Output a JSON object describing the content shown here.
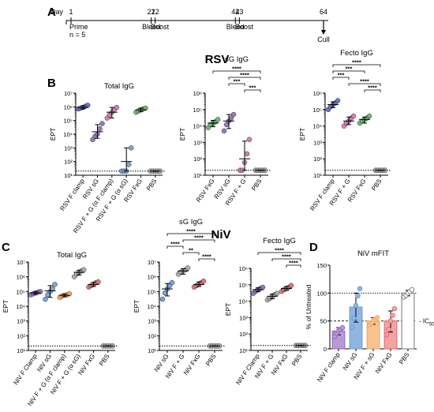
{
  "panels": {
    "A": "A",
    "B": "B",
    "C": "C",
    "D": "D"
  },
  "section_titles": {
    "rsv": "RSV",
    "niv": "NiV"
  },
  "timeline": {
    "day_label": "Day",
    "days": [
      {
        "day": 1,
        "label": "1",
        "event": "Prime",
        "sub": "n = 5"
      },
      {
        "day": 21,
        "label": "21",
        "event": "Bleed",
        "sub": ""
      },
      {
        "day": 22,
        "label": "22",
        "event": "Boost",
        "sub": ""
      },
      {
        "day": 42,
        "label": "42",
        "event": "Bleed",
        "sub": ""
      },
      {
        "day": 43,
        "label": "43",
        "event": "Boost",
        "sub": ""
      },
      {
        "day": 64,
        "label": "64",
        "event": "Cull",
        "sub": ""
      }
    ]
  },
  "chart_data": [
    {
      "id": "B1",
      "type": "scatter",
      "title": "Total IgG",
      "ylabel": "EPT",
      "log": true,
      "ylim": [
        10,
        10000000
      ],
      "limit_line": 20,
      "categories": [
        "RSV F clamp",
        "RSV sG",
        "RSV F + G (α F clamp)",
        "RSV F + G (α sG)",
        "RSV FxG",
        "PBS"
      ],
      "colors": [
        "#5b6db8",
        "#8e6ab5",
        "#d373a7",
        "#6a9bd0",
        "#62b56a",
        "#9e9e9e"
      ],
      "values": [
        [
          700000,
          800000,
          900000,
          1100000,
          1300000
        ],
        [
          4000,
          7000,
          10000,
          25000,
          60000
        ],
        [
          150000,
          250000,
          400000,
          600000,
          900000
        ],
        [
          20,
          20,
          20,
          60,
          1000
        ],
        [
          400000,
          500000,
          600000,
          700000,
          800000
        ],
        [
          20,
          20,
          20,
          20,
          20
        ]
      ],
      "means": [
        900000,
        15000,
        400000,
        100,
        600000,
        20
      ],
      "sds_low": [
        700000,
        5000,
        150000,
        20,
        450000,
        20
      ],
      "sds_high": [
        1200000,
        50000,
        900000,
        1000,
        800000,
        20
      ],
      "yticks": [
        "10¹",
        "10²",
        "10³",
        "10⁴",
        "10⁵",
        "10⁶",
        "10⁷"
      ],
      "sig": []
    },
    {
      "id": "B2",
      "type": "scatter",
      "title": "sG IgG",
      "ylabel": "EPT",
      "log": true,
      "ylim": [
        10,
        1000000
      ],
      "limit_line": 20,
      "categories": [
        "RSV FxG",
        "RSV sG",
        "RSV F + G",
        "PBS"
      ],
      "colors": [
        "#62b56a",
        "#8e6ab5",
        "#d373a7",
        "#9e9e9e"
      ],
      "values": [
        [
          8000,
          12000,
          15000,
          18000,
          25000
        ],
        [
          5000,
          12000,
          20000,
          30000,
          50000
        ],
        [
          20,
          20,
          60,
          200,
          1500
        ],
        [
          20,
          20,
          20,
          20,
          20
        ]
      ],
      "means": [
        15000,
        20000,
        100,
        20
      ],
      "sds_low": [
        9000,
        7000,
        20,
        20
      ],
      "sds_high": [
        22000,
        50000,
        1200,
        20
      ],
      "yticks": [
        "10¹",
        "10²",
        "10³",
        "10⁴",
        "10⁵",
        "10⁶"
      ],
      "sig": [
        {
          "from": 0,
          "to": 3,
          "label": "****"
        },
        {
          "from": 1,
          "to": 3,
          "label": "****"
        },
        {
          "from": 1,
          "to": 2,
          "label": "***"
        },
        {
          "from": 2,
          "to": 3,
          "label": "***"
        }
      ]
    },
    {
      "id": "B3",
      "type": "scatter",
      "title": "Fecto IgG",
      "ylabel": "EPT",
      "log": true,
      "ylim": [
        10,
        1000000
      ],
      "limit_line": 20,
      "categories": [
        "RSV F clamp",
        "RSV F + G",
        "RSV FxG",
        "PBS"
      ],
      "colors": [
        "#5b6db8",
        "#d373a7",
        "#62b56a",
        "#9e9e9e"
      ],
      "values": [
        [
          100000,
          150000,
          200000,
          250000,
          350000
        ],
        [
          10000,
          15000,
          20000,
          30000,
          40000
        ],
        [
          15000,
          20000,
          25000,
          30000,
          40000
        ],
        [
          20,
          20,
          20,
          20,
          20
        ]
      ],
      "means": [
        200000,
        20000,
        25000,
        20
      ],
      "sds_low": [
        130000,
        12000,
        15000,
        20
      ],
      "sds_high": [
        300000,
        35000,
        35000,
        20
      ],
      "yticks": [
        "10¹",
        "10²",
        "10³",
        "10⁴",
        "10⁵",
        "10⁶"
      ],
      "sig": [
        {
          "from": 0,
          "to": 3,
          "label": "****"
        },
        {
          "from": 0,
          "to": 2,
          "label": "***"
        },
        {
          "from": 0,
          "to": 1,
          "label": "***"
        },
        {
          "from": 1,
          "to": 3,
          "label": "****"
        },
        {
          "from": 2,
          "to": 3,
          "label": "****"
        }
      ]
    },
    {
      "id": "C1",
      "type": "scatter",
      "title": "Total IgG",
      "ylabel": "EPT",
      "log": true,
      "ylim": [
        10,
        10000000
      ],
      "limit_line": 20,
      "categories": [
        "NiV F Clamp",
        "NiV sG",
        "NiV F + G (α F clamp)",
        "NiV F + G (α sG)",
        "NiV FxG",
        "PBS"
      ],
      "colors": [
        "#8e6ab5",
        "#6a9bd0",
        "#f2a65a",
        "#a8a8a8",
        "#e06b6b",
        "#9e9e9e"
      ],
      "values": [
        [
          60000,
          70000,
          80000,
          90000,
          100000
        ],
        [
          30000,
          60000,
          100000,
          150000,
          300000
        ],
        [
          40000,
          50000,
          55000,
          60000,
          70000
        ],
        [
          1000000,
          1500000,
          2000000,
          2500000,
          3000000
        ],
        [
          200000,
          250000,
          300000,
          400000,
          450000
        ],
        [
          20,
          20,
          20,
          20,
          20
        ]
      ],
      "means": [
        80000,
        110000,
        55000,
        2000000,
        300000,
        20
      ],
      "sds_low": [
        65000,
        40000,
        45000,
        1300000,
        220000,
        20
      ],
      "sds_high": [
        95000,
        250000,
        65000,
        2800000,
        420000,
        20
      ],
      "yticks": [
        "10¹",
        "10²",
        "10³",
        "10⁴",
        "10⁵",
        "10⁶",
        "10⁷"
      ],
      "sig": []
    },
    {
      "id": "C2",
      "type": "scatter",
      "title": "sG IgG",
      "ylabel": "EPT",
      "log": true,
      "ylim": [
        10,
        10000000
      ],
      "limit_line": 20,
      "categories": [
        "NiV sG",
        "NiV F + G",
        "NiV FxG",
        "PBS"
      ],
      "colors": [
        "#6a9bd0",
        "#a8a8a8",
        "#e06b6b",
        "#9e9e9e"
      ],
      "values": [
        [
          30000,
          80000,
          150000,
          250000,
          400000
        ],
        [
          1500000,
          2000000,
          2500000,
          3000000,
          4000000
        ],
        [
          200000,
          250000,
          300000,
          400000,
          500000
        ],
        [
          20,
          20,
          20,
          20,
          20
        ]
      ],
      "means": [
        150000,
        2500000,
        300000,
        20
      ],
      "sds_low": [
        50000,
        1500000,
        220000,
        20
      ],
      "sds_high": [
        350000,
        3500000,
        450000,
        20
      ],
      "yticks": [
        "10¹",
        "10²",
        "10³",
        "10⁴",
        "10⁵",
        "10⁶",
        "10⁷"
      ],
      "sig": [
        {
          "from": 0,
          "to": 3,
          "label": "****"
        },
        {
          "from": 1,
          "to": 3,
          "label": "****"
        },
        {
          "from": 0,
          "to": 1,
          "label": "****"
        },
        {
          "from": 1,
          "to": 2,
          "label": "**"
        },
        {
          "from": 2,
          "to": 3,
          "label": "****"
        }
      ]
    },
    {
      "id": "C3",
      "type": "scatter",
      "title": "Fecto IgG",
      "ylabel": "EPT",
      "log": true,
      "ylim": [
        10,
        1000000
      ],
      "limit_line": 20,
      "categories": [
        "NiV F Clamp",
        "NiV F + G",
        "NiV FxG",
        "PBS"
      ],
      "colors": [
        "#8e6ab5",
        "#a8a8a8",
        "#e06b6b",
        "#9e9e9e"
      ],
      "values": [
        [
          30000,
          40000,
          50000,
          60000,
          70000
        ],
        [
          12000,
          15000,
          20000,
          25000,
          30000
        ],
        [
          40000,
          50000,
          60000,
          70000,
          90000
        ],
        [
          20,
          20,
          20,
          20,
          20
        ]
      ],
      "means": [
        50000,
        20000,
        60000,
        20
      ],
      "sds_low": [
        38000,
        14000,
        45000,
        20
      ],
      "sds_high": [
        65000,
        27000,
        80000,
        20
      ],
      "yticks": [
        "10¹",
        "10²",
        "10³",
        "10⁴",
        "10⁵",
        "10⁶"
      ],
      "sig": [
        {
          "from": 0,
          "to": 3,
          "label": "****"
        },
        {
          "from": 1,
          "to": 3,
          "label": "****"
        },
        {
          "from": 2,
          "to": 3,
          "label": "****"
        }
      ]
    },
    {
      "id": "D",
      "type": "bar",
      "title": "NiV mFIT",
      "ylabel": "% of Untreated",
      "ylim": [
        0,
        150
      ],
      "categories": [
        "NiV F clamp",
        "NiV sG",
        "NiV F + sG",
        "NiV FxG",
        "PBS"
      ],
      "colors": [
        "#b79bd6",
        "#8fb5e0",
        "#f7c48d",
        "#f2a3a3",
        "#ffffff"
      ],
      "edge_colors": [
        "#8e6ab5",
        "#6a9bd0",
        "#f2a65a",
        "#e06b6b",
        "#777777"
      ],
      "values": [
        [
          22,
          28,
          32,
          35,
          38
        ],
        [
          38,
          55,
          78,
          95,
          108
        ],
        [
          42,
          46,
          50,
          53,
          56
        ],
        [
          25,
          35,
          50,
          60,
          72
        ],
        [
          93,
          96,
          100,
          103,
          106
        ]
      ],
      "means": [
        32,
        75,
        50,
        50,
        100
      ],
      "sds_low": [
        25,
        48,
        44,
        30,
        95
      ],
      "sds_high": [
        38,
        100,
        56,
        68,
        105
      ],
      "yticks": [
        "0",
        "50",
        "100",
        "150"
      ],
      "ref_lines": [
        100,
        50
      ],
      "ic50_label": "IC",
      "ic50_sub": "50"
    }
  ]
}
